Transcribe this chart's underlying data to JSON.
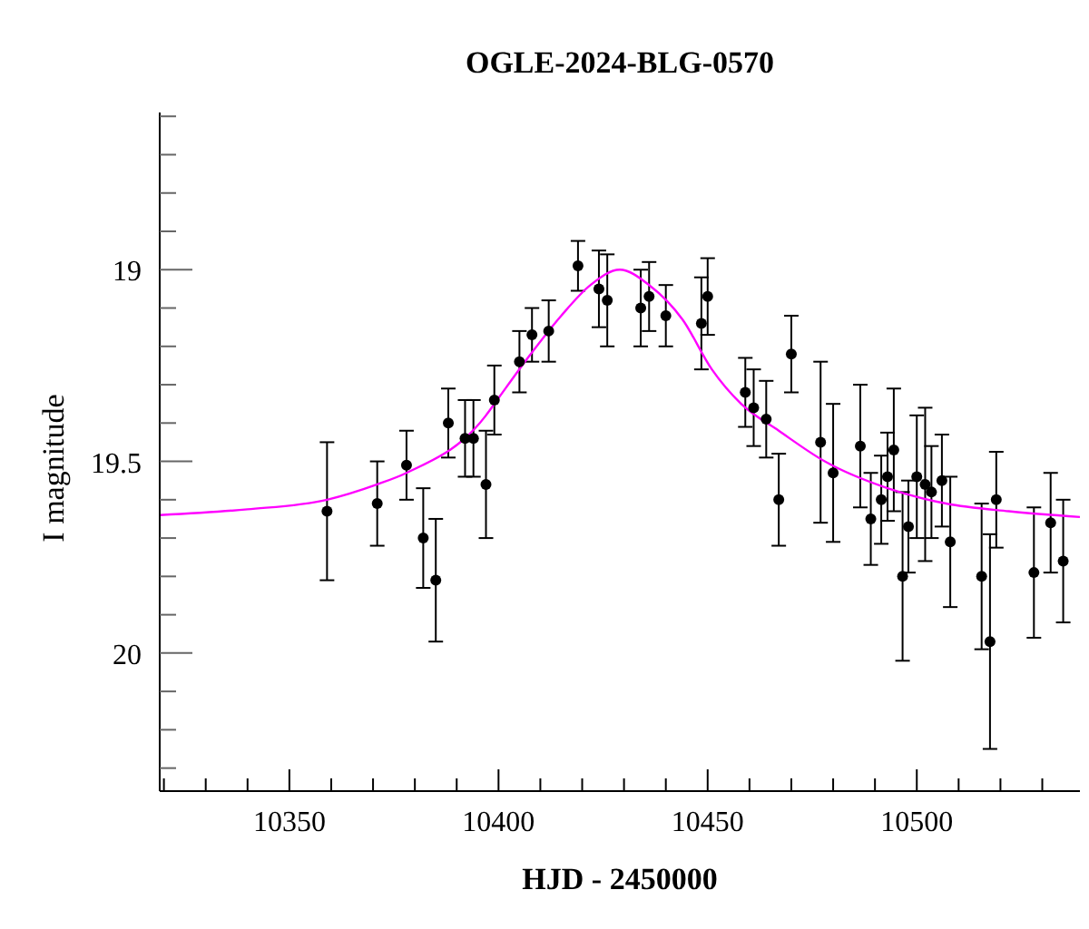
{
  "chart_data": {
    "type": "scatter",
    "title": "OGLE-2024-BLG-0570",
    "xlabel": "HJD - 2450000",
    "ylabel": "I magnitude",
    "xlim": [
      10319,
      10539
    ],
    "ylim": [
      20.36,
      18.59
    ],
    "xticks": [
      {
        "value": 10320,
        "label": null
      },
      {
        "value": 10330,
        "label": null
      },
      {
        "value": 10340,
        "label": null
      },
      10350,
      {
        "value": 10360,
        "label": null
      },
      {
        "value": 10370,
        "label": null
      },
      {
        "value": 10380,
        "label": null
      },
      {
        "value": 10390,
        "label": null
      },
      10400,
      {
        "value": 10410,
        "label": null
      },
      {
        "value": 10420,
        "label": null
      },
      {
        "value": 10430,
        "label": null
      },
      {
        "value": 10440,
        "label": null
      },
      10450,
      {
        "value": 10460,
        "label": null
      },
      {
        "value": 10470,
        "label": null
      },
      {
        "value": 10480,
        "label": null
      },
      {
        "value": 10490,
        "label": null
      },
      10500,
      {
        "value": 10510,
        "label": null
      },
      {
        "value": 10520,
        "label": null
      },
      {
        "value": 10530,
        "label": null
      }
    ],
    "yticks": [
      {
        "value": 18.6,
        "label": null
      },
      {
        "value": 18.7,
        "label": null
      },
      {
        "value": 18.8,
        "label": null
      },
      {
        "value": 18.9,
        "label": null
      },
      19,
      {
        "value": 19.1,
        "label": null
      },
      {
        "value": 19.2,
        "label": null
      },
      {
        "value": 19.3,
        "label": null
      },
      {
        "value": 19.4,
        "label": null
      },
      19.5,
      {
        "value": 19.6,
        "label": null
      },
      {
        "value": 19.7,
        "label": null
      },
      {
        "value": 19.8,
        "label": null
      },
      {
        "value": 19.9,
        "label": null
      },
      20,
      {
        "value": 20.1,
        "label": null
      },
      {
        "value": 20.2,
        "label": null
      },
      {
        "value": 20.3,
        "label": null
      }
    ],
    "grid": false,
    "legend": false,
    "series": [
      {
        "color": "#000000",
        "marker": "circle",
        "x": [
          10359,
          10371,
          10378,
          10382,
          10385,
          10388,
          10392,
          10394,
          10397,
          10399,
          10405,
          10408,
          10412,
          10419,
          10424,
          10426,
          10434,
          10436,
          10440,
          10448.5,
          10450,
          10459,
          10461,
          10464,
          10467,
          10470,
          10477,
          10480,
          10486.5,
          10489,
          10491.5,
          10493,
          10494.5,
          10496.6,
          10498,
          10500,
          10502,
          10503.5,
          10506,
          10508,
          10515.5,
          10517.5,
          10519,
          10528,
          10532,
          10535
        ],
        "values": [
          19.63,
          19.61,
          19.51,
          19.7,
          19.81,
          19.4,
          19.44,
          19.44,
          19.56,
          19.34,
          19.24,
          19.17,
          19.16,
          18.99,
          19.05,
          19.08,
          19.1,
          19.07,
          19.12,
          19.14,
          19.07,
          19.32,
          19.36,
          19.39,
          19.6,
          19.22,
          19.45,
          19.53,
          19.46,
          19.65,
          19.6,
          19.54,
          19.47,
          19.8,
          19.67,
          19.54,
          19.56,
          19.58,
          19.55,
          19.71,
          19.8,
          19.97,
          19.6,
          19.79,
          19.66,
          19.76
        ],
        "errors": [
          0.18,
          0.11,
          0.09,
          0.13,
          0.16,
          0.09,
          0.1,
          0.1,
          0.14,
          0.09,
          0.08,
          0.07,
          0.08,
          0.065,
          0.1,
          0.12,
          0.1,
          0.09,
          0.08,
          0.12,
          0.1,
          0.09,
          0.1,
          0.1,
          0.12,
          0.1,
          0.21,
          0.18,
          0.16,
          0.12,
          0.115,
          0.115,
          0.16,
          0.22,
          0.12,
          0.16,
          0.2,
          0.12,
          0.12,
          0.17,
          0.19,
          0.28,
          0.125,
          0.17,
          0.13,
          0.16
        ]
      },
      {
        "type": "line",
        "color": "#ff00ff",
        "marker": "none",
        "line_style": "solid",
        "x": [
          10319,
          10340,
          10359,
          10371,
          10378,
          10397,
          10399,
          10407,
          10415,
          10422,
          10429,
          10436,
          10444,
          10451,
          10458,
          10467,
          10478,
          10493,
          10507,
          10522,
          10539
        ],
        "values": [
          19.64,
          19.625,
          19.6,
          19.56,
          19.53,
          19.38,
          19.35,
          19.23,
          19.12,
          19.04,
          19.0,
          19.04,
          19.13,
          19.26,
          19.35,
          19.42,
          19.5,
          19.57,
          19.61,
          19.63,
          19.645
        ]
      }
    ]
  }
}
